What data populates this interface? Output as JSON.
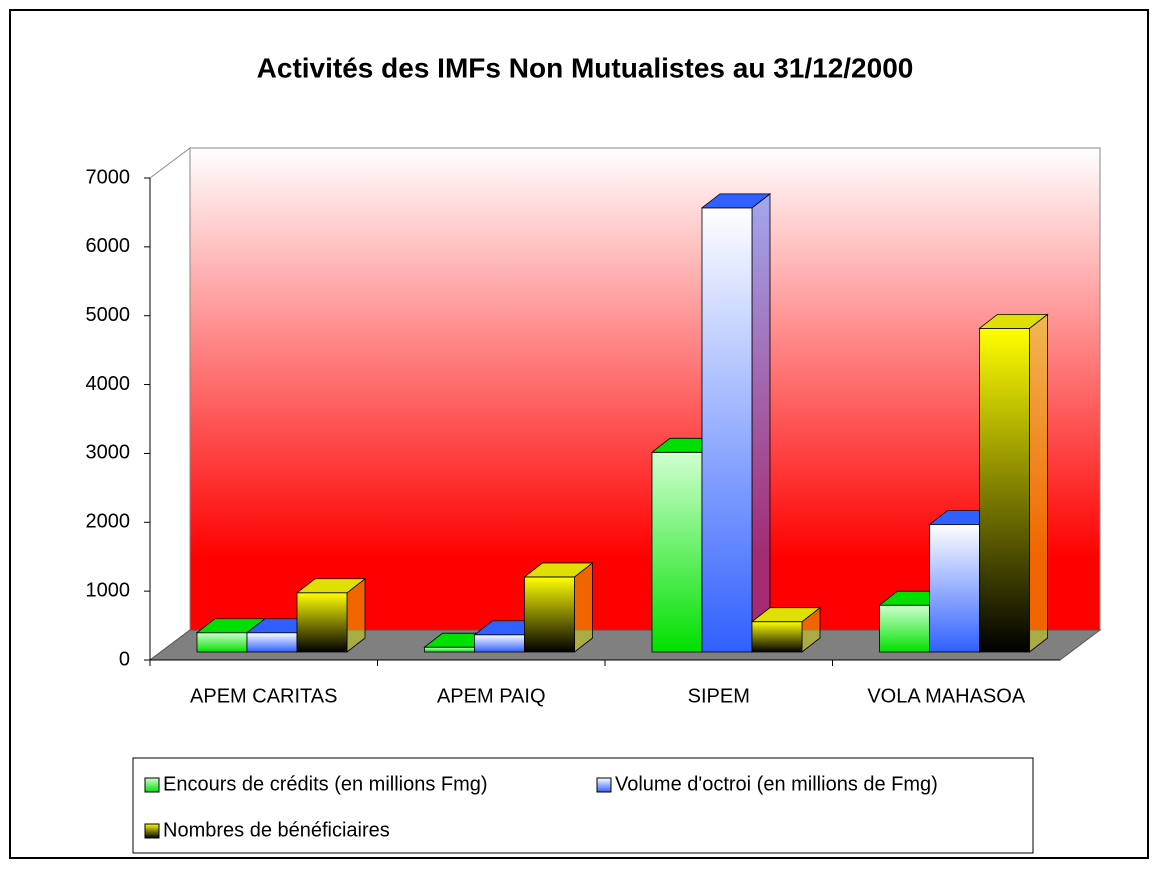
{
  "chart_data": {
    "type": "bar3d",
    "title": "Activités des IMFs Non Mutualistes au 31/12/2000",
    "categories": [
      "APEM CARITAS",
      "APEM PAIQ",
      "SIPEM",
      "VOLA MAHASOA"
    ],
    "series": [
      {
        "name": "Encours de crédits (en millions Fmg)",
        "color": "#00e000",
        "values": [
          280,
          70,
          2900,
          680
        ]
      },
      {
        "name": "Volume d'octroi (en millions de Fmg)",
        "color": "#3060ff",
        "values": [
          280,
          250,
          6450,
          1850
        ]
      },
      {
        "name": "Nombres de bénéficiaires",
        "color": "#e0e000",
        "values": [
          860,
          1090,
          440,
          4700
        ]
      }
    ],
    "ylim": [
      0,
      7000
    ],
    "yticks": [
      0,
      1000,
      2000,
      3000,
      4000,
      5000,
      6000,
      7000
    ],
    "grid": false
  }
}
